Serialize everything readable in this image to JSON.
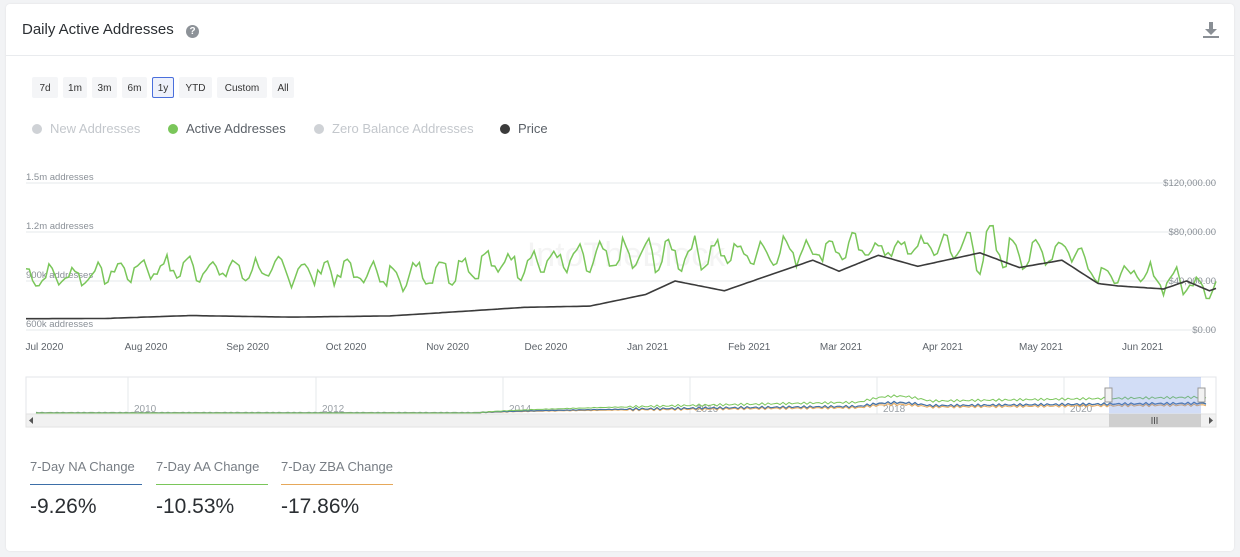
{
  "header": {
    "title": "Daily Active Addresses",
    "help_icon": "question-circle-icon",
    "download_icon": "download-icon"
  },
  "range_buttons": [
    {
      "label": "7d"
    },
    {
      "label": "1m"
    },
    {
      "label": "3m"
    },
    {
      "label": "6m"
    },
    {
      "label": "1y",
      "active": true
    },
    {
      "label": "YTD"
    },
    {
      "label": "Custom"
    },
    {
      "label": "All"
    }
  ],
  "legend": [
    {
      "label": "New Addresses",
      "color": "#cfd2d6",
      "enabled": false
    },
    {
      "label": "Active Addresses",
      "color": "#7ac65a",
      "enabled": true
    },
    {
      "label": "Zero Balance Addresses",
      "color": "#cfd2d6",
      "enabled": false
    },
    {
      "label": "Price",
      "color": "#3b3b3b",
      "enabled": true
    }
  ],
  "watermark": "IntoTheBlock",
  "chart_data": {
    "type": "line",
    "x_range": [
      "2020-06-26",
      "2021-06-24"
    ],
    "x_ticks": [
      "Jul 2020",
      "Aug 2020",
      "Sep 2020",
      "Oct 2020",
      "Nov 2020",
      "Dec 2020",
      "Jan 2021",
      "Feb 2021",
      "Mar 2021",
      "Apr 2021",
      "May 2021",
      "Jun 2021"
    ],
    "y_left": {
      "ticks": [
        "600k addresses",
        "900k addresses",
        "1.2m addresses",
        "1.5m addresses"
      ],
      "range": [
        600000,
        1500000
      ]
    },
    "y_right": {
      "ticks": [
        "$0.00",
        "$40,000.00",
        "$80,000.00",
        "$120,000.00"
      ],
      "range": [
        0,
        120000
      ]
    },
    "grid": true,
    "legend_position": "top-left",
    "series": [
      {
        "name": "Active Addresses",
        "axis": "left",
        "color": "#7ac65a",
        "x": [
          "2020-06-26",
          "2020-07-15",
          "2020-08-01",
          "2020-08-15",
          "2020-09-01",
          "2020-09-15",
          "2020-10-01",
          "2020-10-15",
          "2020-11-01",
          "2020-11-15",
          "2020-12-01",
          "2020-12-15",
          "2021-01-01",
          "2021-01-15",
          "2021-02-01",
          "2021-02-15",
          "2021-03-01",
          "2021-03-15",
          "2021-04-01",
          "2021-04-15",
          "2021-05-01",
          "2021-05-10",
          "2021-05-20",
          "2021-06-01",
          "2021-06-15",
          "2021-06-24"
        ],
        "low": [
          850000,
          860000,
          900000,
          890000,
          880000,
          870000,
          860000,
          820000,
          870000,
          900000,
          920000,
          920000,
          940000,
          960000,
          970000,
          990000,
          1000000,
          1010000,
          1020000,
          930000,
          980000,
          1030000,
          850000,
          840000,
          800000,
          780000
        ],
        "high": [
          1000000,
          1010000,
          1060000,
          1070000,
          1050000,
          1050000,
          1060000,
          1040000,
          1080000,
          1110000,
          1120000,
          1130000,
          1170000,
          1180000,
          1170000,
          1190000,
          1200000,
          1180000,
          1210000,
          1260000,
          1150000,
          1190000,
          1040000,
          1020000,
          980000,
          960000
        ]
      },
      {
        "name": "Price",
        "axis": "right",
        "color": "#3b3b3b",
        "x": [
          "2020-06-26",
          "2020-07-20",
          "2020-08-15",
          "2020-09-15",
          "2020-10-15",
          "2020-11-05",
          "2020-11-25",
          "2020-12-15",
          "2021-01-01",
          "2021-01-10",
          "2021-01-25",
          "2021-02-08",
          "2021-02-21",
          "2021-03-01",
          "2021-03-13",
          "2021-03-25",
          "2021-04-13",
          "2021-04-25",
          "2021-05-08",
          "2021-05-19",
          "2021-05-25",
          "2021-06-08",
          "2021-06-15",
          "2021-06-22",
          "2021-06-24"
        ],
        "values": [
          9200,
          9400,
          11800,
          10500,
          11500,
          15000,
          18500,
          19500,
          29000,
          40000,
          32000,
          45000,
          57000,
          48000,
          61000,
          52000,
          63000,
          51000,
          57000,
          38000,
          36000,
          33500,
          40000,
          32000,
          34000
        ]
      }
    ]
  },
  "navigator": {
    "year_labels": [
      "2010",
      "2012",
      "2014",
      "2016",
      "2018",
      "2020"
    ],
    "scroll_left_icon": "chevron-left-icon",
    "scroll_right_icon": "chevron-right-icon",
    "grip_icon": "grip-icon"
  },
  "stats": [
    {
      "label": "7-Day NA Change",
      "value": "-9.26%",
      "color": "#3d6fa8"
    },
    {
      "label": "7-Day AA Change",
      "value": "-10.53%",
      "color": "#7ac65a"
    },
    {
      "label": "7-Day ZBA Change",
      "value": "-17.86%",
      "color": "#e6a85a"
    }
  ]
}
